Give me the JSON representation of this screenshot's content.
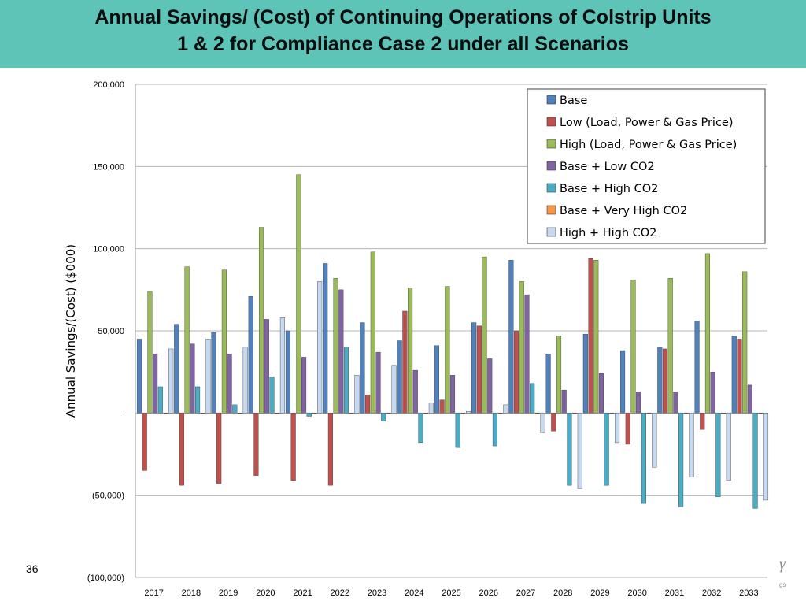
{
  "slide": {
    "title_line1": "Annual Savings/ (Cost) of Continuing Operations of Colstrip Units",
    "title_line2": "1 & 2 for Compliance Case 2 under all Scenarios",
    "page_number": "36",
    "logo_fragment": "γ",
    "logo_fragment_small": "gs"
  },
  "chart_data": {
    "type": "bar",
    "title": "",
    "xlabel": "",
    "ylabel": "Annual Savings/(Cost) ($000)",
    "ylim": [
      -100000,
      200000
    ],
    "yticks": [
      {
        "value": 200000,
        "label": "200,000"
      },
      {
        "value": 150000,
        "label": "150,000"
      },
      {
        "value": 100000,
        "label": "100,000"
      },
      {
        "value": 50000,
        "label": "50,000"
      },
      {
        "value": 0,
        "label": "-"
      },
      {
        "value": -50000,
        "label": "(50,000)"
      },
      {
        "value": -100000,
        "label": "(100,000)"
      }
    ],
    "grid": true,
    "legend_position": "top-right",
    "categories": [
      "2017",
      "2018",
      "2019",
      "2020",
      "2021",
      "2022",
      "2023",
      "2024",
      "2025",
      "2026",
      "2027",
      "2028",
      "2029",
      "2030",
      "2031",
      "2032",
      "2033"
    ],
    "series": [
      {
        "name": "Base",
        "color": "#4f81bd",
        "values": [
          45000,
          54000,
          49000,
          71000,
          50000,
          91000,
          55000,
          44000,
          41000,
          55000,
          93000,
          36000,
          48000,
          38000,
          40000,
          56000,
          47000
        ]
      },
      {
        "name": "Low (Load, Power & Gas Price)",
        "color": "#c0504d",
        "values": [
          -35000,
          -44000,
          -43000,
          -38000,
          -41000,
          -44000,
          11000,
          62000,
          8000,
          53000,
          50000,
          -11000,
          94000,
          -19000,
          39000,
          -10000,
          45000
        ]
      },
      {
        "name": "High (Load, Power & Gas Price)",
        "color": "#9bbb59",
        "values": [
          74000,
          89000,
          87000,
          113000,
          145000,
          82000,
          98000,
          76000,
          77000,
          95000,
          80000,
          47000,
          93000,
          81000,
          82000,
          97000,
          86000
        ]
      },
      {
        "name": "Base + Low CO2",
        "color": "#8064a2",
        "values": [
          36000,
          42000,
          36000,
          57000,
          34000,
          75000,
          37000,
          26000,
          23000,
          33000,
          72000,
          14000,
          24000,
          13000,
          13000,
          25000,
          17000
        ]
      },
      {
        "name": "Base + High CO2",
        "color": "#4bacc6",
        "values": [
          16000,
          16000,
          5000,
          22000,
          -2000,
          40000,
          -5000,
          -18000,
          -21000,
          -20000,
          18000,
          -44000,
          -44000,
          -55000,
          -57000,
          -51000,
          -58000
        ]
      },
      {
        "name": "Base + Very High CO2",
        "color": "#f79646",
        "values": [
          0,
          0,
          0,
          0,
          0,
          0,
          0,
          0,
          0,
          0,
          0,
          0,
          0,
          0,
          0,
          0,
          0
        ]
      },
      {
        "name": "High + High CO2",
        "color": "#c6d9f1",
        "values": [
          39000,
          45000,
          40000,
          58000,
          80000,
          23000,
          29000,
          6000,
          1000,
          5000,
          -12000,
          -46000,
          -18000,
          -33000,
          -39000,
          -41000,
          -53000
        ]
      }
    ]
  }
}
